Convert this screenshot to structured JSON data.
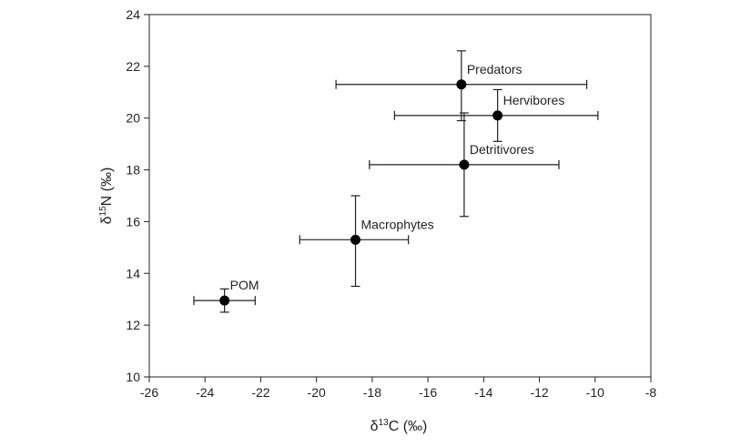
{
  "chart_data": {
    "type": "scatter",
    "title": "",
    "xlabel_prefix": "δ",
    "xlabel_sup": "13",
    "xlabel_suffix": "C (‰)",
    "ylabel_prefix": "δ",
    "ylabel_sup": "15",
    "ylabel_suffix": "N (‰)",
    "xlim": [
      -26,
      -8
    ],
    "ylim": [
      10,
      24
    ],
    "xticks": [
      -26,
      -24,
      -22,
      -20,
      -18,
      -16,
      -14,
      -12,
      -10,
      -8
    ],
    "yticks": [
      10,
      12,
      14,
      16,
      18,
      20,
      22,
      24
    ],
    "grid": false,
    "legend": "none",
    "points": [
      {
        "name": "Predators",
        "x": -14.8,
        "y": 21.3,
        "x_err_low": -19.3,
        "x_err_high": -10.3,
        "y_err_low": 19.9,
        "y_err_high": 22.6
      },
      {
        "name": "Hervibores",
        "x": -13.5,
        "y": 20.1,
        "x_err_low": -17.2,
        "x_err_high": -9.9,
        "y_err_low": 19.1,
        "y_err_high": 21.1
      },
      {
        "name": "Detritivores",
        "x": -14.7,
        "y": 18.2,
        "x_err_low": -18.1,
        "x_err_high": -11.3,
        "y_err_low": 16.2,
        "y_err_high": 20.2
      },
      {
        "name": "Macrophytes",
        "x": -18.6,
        "y": 15.3,
        "x_err_low": -20.6,
        "x_err_high": -16.7,
        "y_err_low": 13.5,
        "y_err_high": 17.0
      },
      {
        "name": "POM",
        "x": -23.3,
        "y": 12.95,
        "x_err_low": -24.4,
        "x_err_high": -22.2,
        "y_err_low": 12.5,
        "y_err_high": 13.4
      }
    ],
    "colors": {
      "marker": "#000000",
      "axis": "#231f20"
    }
  }
}
